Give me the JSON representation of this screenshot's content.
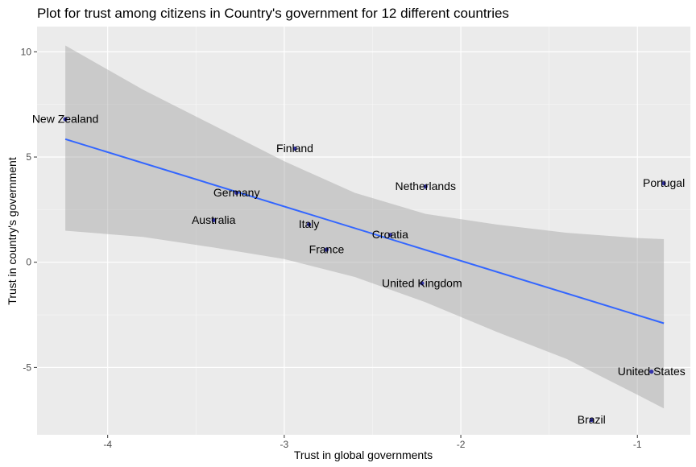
{
  "chart_data": {
    "type": "scatter",
    "title": "Plot for trust among citizens in Country's government for 12 different countries",
    "xlabel": "Trust in global governments",
    "ylabel": "Trust in country's government",
    "xlim": [
      -4.4,
      -0.7
    ],
    "ylim": [
      -8.2,
      11.2
    ],
    "x_ticks": [
      -4,
      -3,
      -2,
      -1
    ],
    "y_ticks": [
      -5,
      0,
      5,
      10
    ],
    "x_tick_labels": [
      "-4",
      "-3",
      "-2",
      "-1"
    ],
    "y_tick_labels": [
      "-5",
      "0",
      "5",
      "10"
    ],
    "grid": true,
    "point_color": "#3333aa",
    "line_color": "#3366ff",
    "band_color": "#999999",
    "panel_color": "#ebebeb",
    "points": [
      {
        "label": "New Zealand",
        "x": -4.24,
        "y": 6.8
      },
      {
        "label": "Finland",
        "x": -2.94,
        "y": 5.4
      },
      {
        "label": "Netherlands",
        "x": -2.2,
        "y": 3.6
      },
      {
        "label": "Portugal",
        "x": -0.85,
        "y": 3.75
      },
      {
        "label": "Germany",
        "x": -3.27,
        "y": 3.3
      },
      {
        "label": "Australia",
        "x": -3.4,
        "y": 2.0
      },
      {
        "label": "Italy",
        "x": -2.86,
        "y": 1.8
      },
      {
        "label": "Croatia",
        "x": -2.4,
        "y": 1.3
      },
      {
        "label": "France",
        "x": -2.76,
        "y": 0.6
      },
      {
        "label": "United Kingdom",
        "x": -2.22,
        "y": -1.0
      },
      {
        "label": "United States",
        "x": -0.92,
        "y": -5.2
      },
      {
        "label": "Brazil",
        "x": -1.26,
        "y": -7.5
      }
    ],
    "regression": {
      "x_start": -4.24,
      "y_start": 5.85,
      "x_end": -0.85,
      "y_end": -2.9
    },
    "confidence_band": [
      {
        "x": -4.24,
        "upper": 10.3,
        "lower": 1.5
      },
      {
        "x": -3.8,
        "upper": 8.2,
        "lower": 1.2
      },
      {
        "x": -3.4,
        "upper": 6.5,
        "lower": 0.7
      },
      {
        "x": -3.0,
        "upper": 4.8,
        "lower": 0.15
      },
      {
        "x": -2.6,
        "upper": 3.3,
        "lower": -0.7
      },
      {
        "x": -2.2,
        "upper": 2.3,
        "lower": -1.9
      },
      {
        "x": -1.8,
        "upper": 1.8,
        "lower": -3.3
      },
      {
        "x": -1.4,
        "upper": 1.4,
        "lower": -4.6
      },
      {
        "x": -1.0,
        "upper": 1.15,
        "lower": -6.3
      },
      {
        "x": -0.85,
        "upper": 1.1,
        "lower": -6.95
      }
    ]
  }
}
